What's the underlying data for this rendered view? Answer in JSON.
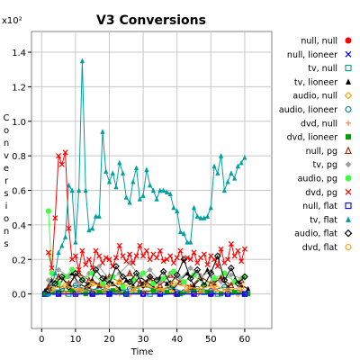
{
  "chart_data": {
    "type": "line",
    "title": "V3 Conversions",
    "xlabel": "Time",
    "ylabel": "Conversions",
    "y_scale_note": "x10²",
    "xlim": [
      -3,
      68
    ],
    "ylim": [
      -0.2,
      1.52
    ],
    "x_ticks": [
      "0",
      "10",
      "20",
      "30",
      "40",
      "50",
      "60"
    ],
    "y_ticks": [
      "0.0",
      "0.2",
      "0.4",
      "0.6",
      "0.8",
      "1.0",
      "1.2",
      "1.4"
    ],
    "grid": true,
    "legend_position": "right",
    "series": [
      {
        "name": "null, null",
        "color": "#ff0000",
        "marker": "circle-filled",
        "x": [
          1,
          5,
          10,
          15,
          20,
          25,
          30,
          35,
          40,
          45,
          50,
          55,
          60
        ],
        "y": [
          0,
          0,
          0,
          0,
          0,
          0,
          0,
          0,
          0,
          0,
          0,
          0,
          0
        ]
      },
      {
        "name": "null, lioneer",
        "color": "#0000ff",
        "marker": "x",
        "x": [
          1,
          5,
          10,
          15,
          20,
          25,
          30,
          35,
          40,
          45,
          50,
          55,
          60
        ],
        "y": [
          0,
          0,
          0,
          0,
          0,
          0,
          0,
          0,
          0,
          0,
          0,
          0,
          0
        ]
      },
      {
        "name": "tv, null",
        "color": "#00a080",
        "marker": "square-open",
        "x": [
          1,
          4,
          8,
          12,
          16,
          20,
          24,
          28,
          32,
          36,
          40,
          44,
          48,
          52,
          56,
          60
        ],
        "y": [
          0.0,
          0.01,
          0.0,
          0.02,
          0.01,
          0.0,
          0.01,
          0.02,
          0.0,
          0.01,
          0.0,
          0.02,
          0.01,
          0.0,
          0.01,
          0.0
        ]
      },
      {
        "name": "tv, lioneer",
        "color": "#000000",
        "marker": "triangle-filled",
        "x": [
          1,
          3,
          5,
          7,
          9,
          11,
          13,
          15,
          17,
          19,
          21,
          23,
          25,
          27,
          29,
          31,
          33,
          35,
          37,
          39,
          41,
          43,
          45,
          47,
          49,
          51,
          53,
          55,
          57,
          59,
          61
        ],
        "y": [
          0.02,
          0.08,
          0.05,
          0.1,
          0.12,
          0.06,
          0.04,
          0.08,
          0.05,
          0.1,
          0.06,
          0.03,
          0.08,
          0.05,
          0.1,
          0.07,
          0.04,
          0.09,
          0.06,
          0.03,
          0.08,
          0.12,
          0.05,
          0.09,
          0.14,
          0.06,
          0.1,
          0.04,
          0.08,
          0.05,
          0.03
        ]
      },
      {
        "name": "audio, null",
        "color": "#ffa000",
        "marker": "diamond-open",
        "x": [
          2,
          6,
          10,
          14,
          18,
          22,
          26,
          30,
          34,
          38,
          42,
          46,
          50,
          54,
          58
        ],
        "y": [
          0.01,
          0.02,
          0.0,
          0.03,
          0.01,
          0.02,
          0.0,
          0.01,
          0.03,
          0.02,
          0.01,
          0.0,
          0.02,
          0.01,
          0.0
        ]
      },
      {
        "name": "audio, lioneer",
        "color": "#008080",
        "marker": "circle-open",
        "x": [
          2,
          6,
          10,
          14,
          18,
          22,
          26,
          30,
          34,
          38,
          42,
          46,
          50,
          54,
          58
        ],
        "y": [
          0.0,
          0.03,
          0.05,
          0.02,
          0.04,
          0.01,
          0.03,
          0.05,
          0.02,
          0.04,
          0.01,
          0.03,
          0.02,
          0.04,
          0.01
        ]
      },
      {
        "name": "dvd, null",
        "color": "#ff8040",
        "marker": "plus",
        "x": [
          3,
          7,
          11,
          15,
          19,
          23,
          27,
          31,
          35,
          39,
          43,
          47,
          51,
          55,
          59
        ],
        "y": [
          0.02,
          0.0,
          0.03,
          0.01,
          0.02,
          0.0,
          0.02,
          0.01,
          0.03,
          0.0,
          0.02,
          0.01,
          0.03,
          0.0,
          0.02
        ]
      },
      {
        "name": "dvd, lioneer",
        "color": "#00a000",
        "marker": "square-filled",
        "x": [
          1,
          5,
          9,
          13,
          17,
          21,
          25,
          29,
          33,
          37,
          41,
          45,
          49,
          53,
          57,
          61
        ],
        "y": [
          0.0,
          0.01,
          0.02,
          0.0,
          0.01,
          0.02,
          0.0,
          0.01,
          0.02,
          0.01,
          0.0,
          0.02,
          0.01,
          0.0,
          0.01,
          0.0
        ]
      },
      {
        "name": "null, pg",
        "color": "#a02000",
        "marker": "triangle-open",
        "x": [
          2,
          5,
          8,
          11,
          14,
          17,
          20,
          23,
          26,
          29,
          32,
          35,
          38,
          41,
          44,
          47,
          50,
          53,
          56,
          59
        ],
        "y": [
          0.04,
          0.1,
          0.06,
          0.12,
          0.08,
          0.05,
          0.1,
          0.07,
          0.12,
          0.06,
          0.09,
          0.05,
          0.11,
          0.07,
          0.04,
          0.1,
          0.06,
          0.09,
          0.05,
          0.08
        ]
      },
      {
        "name": "tv, pg",
        "color": "#a0a0a0",
        "marker": "diamond-filled",
        "x": [
          2,
          5,
          8,
          11,
          14,
          17,
          20,
          23,
          26,
          29,
          32,
          35,
          38,
          41,
          44,
          47,
          50,
          53,
          56,
          59
        ],
        "y": [
          0.08,
          0.14,
          0.1,
          0.06,
          0.12,
          0.16,
          0.08,
          0.12,
          0.18,
          0.1,
          0.14,
          0.07,
          0.12,
          0.09,
          0.15,
          0.1,
          0.13,
          0.07,
          0.11,
          0.09
        ]
      },
      {
        "name": "audio, pg",
        "color": "#40ff40",
        "marker": "circle-filled",
        "x": [
          2,
          3,
          5,
          7,
          9,
          12,
          15,
          18,
          21,
          24,
          27,
          30,
          33,
          36,
          39,
          42,
          45,
          48,
          51,
          54,
          57,
          60
        ],
        "y": [
          0.48,
          0.12,
          0.06,
          0.1,
          0.14,
          0.08,
          0.12,
          0.06,
          0.1,
          0.04,
          0.08,
          0.12,
          0.06,
          0.09,
          0.13,
          0.07,
          0.11,
          0.05,
          0.09,
          0.12,
          0.07,
          0.1
        ]
      },
      {
        "name": "dvd, pg",
        "color": "#ff0000",
        "marker": "x",
        "x": [
          2,
          3,
          4,
          5,
          6,
          7,
          8,
          9,
          10,
          11,
          12,
          13,
          14,
          15,
          16,
          17,
          18,
          19,
          20,
          21,
          22,
          23,
          24,
          25,
          26,
          27,
          28,
          29,
          30,
          31,
          32,
          33,
          34,
          35,
          36,
          37,
          38,
          39,
          40,
          41,
          42,
          43,
          44,
          45,
          46,
          47,
          48,
          49,
          50,
          51,
          52,
          53,
          54,
          55,
          56,
          57,
          58,
          59,
          60
        ],
        "y": [
          0.24,
          0.15,
          0.44,
          0.8,
          0.75,
          0.82,
          0.38,
          0.2,
          0.22,
          0.14,
          0.25,
          0.17,
          0.2,
          0.15,
          0.25,
          0.22,
          0.18,
          0.21,
          0.2,
          0.16,
          0.21,
          0.28,
          0.22,
          0.19,
          0.23,
          0.18,
          0.22,
          0.28,
          0.22,
          0.25,
          0.2,
          0.23,
          0.21,
          0.25,
          0.19,
          0.2,
          0.22,
          0.18,
          0.21,
          0.25,
          0.19,
          0.21,
          0.2,
          0.24,
          0.18,
          0.21,
          0.23,
          0.17,
          0.22,
          0.2,
          0.16,
          0.26,
          0.18,
          0.2,
          0.29,
          0.22,
          0.25,
          0.19,
          0.26
        ]
      },
      {
        "name": "null, flat",
        "color": "#0000ff",
        "marker": "square-open",
        "x": [
          1,
          5,
          10,
          15,
          20,
          25,
          30,
          35,
          40,
          45,
          50,
          55,
          60
        ],
        "y": [
          0,
          0,
          0,
          0,
          0,
          0,
          0,
          0,
          0,
          0,
          0,
          0,
          0
        ]
      },
      {
        "name": "tv, flat",
        "color": "#00a0a0",
        "marker": "triangle-filled",
        "x": [
          2,
          3,
          4,
          5,
          6,
          7,
          8,
          9,
          10,
          11,
          12,
          13,
          14,
          15,
          16,
          17,
          18,
          19,
          20,
          21,
          22,
          23,
          24,
          25,
          26,
          27,
          28,
          29,
          30,
          31,
          32,
          33,
          34,
          35,
          36,
          37,
          38,
          39,
          40,
          41,
          42,
          43,
          44,
          45,
          46,
          47,
          48,
          49,
          50,
          51,
          52,
          53,
          54,
          55,
          56,
          57,
          58,
          59,
          60
        ],
        "y": [
          0.0,
          0.05,
          0.12,
          0.24,
          0.28,
          0.33,
          0.63,
          0.6,
          0.3,
          0.6,
          1.35,
          0.6,
          0.37,
          0.38,
          0.45,
          0.45,
          0.94,
          0.71,
          0.65,
          0.7,
          0.62,
          0.76,
          0.7,
          0.56,
          0.53,
          0.65,
          0.73,
          0.55,
          0.57,
          0.72,
          0.63,
          0.6,
          0.55,
          0.6,
          0.6,
          0.59,
          0.58,
          0.5,
          0.48,
          0.36,
          0.35,
          0.3,
          0.3,
          0.5,
          0.45,
          0.44,
          0.44,
          0.45,
          0.5,
          0.74,
          0.7,
          0.8,
          0.6,
          0.65,
          0.7,
          0.67,
          0.74,
          0.76,
          0.79
        ]
      },
      {
        "name": "audio, flat",
        "color": "#000000",
        "marker": "diamond-open",
        "x": [
          2,
          4,
          6,
          8,
          10,
          12,
          14,
          16,
          18,
          20,
          22,
          24,
          26,
          28,
          30,
          32,
          34,
          36,
          38,
          40,
          42,
          44,
          46,
          48,
          50,
          52,
          54,
          56,
          58,
          60
        ],
        "y": [
          0.02,
          0.06,
          0.1,
          0.04,
          0.12,
          0.08,
          0.05,
          0.14,
          0.09,
          0.06,
          0.16,
          0.1,
          0.07,
          0.12,
          0.05,
          0.1,
          0.08,
          0.13,
          0.06,
          0.11,
          0.2,
          0.09,
          0.14,
          0.05,
          0.12,
          0.22,
          0.08,
          0.15,
          0.06,
          0.1
        ]
      },
      {
        "name": "dvd, flat",
        "color": "#ffa000",
        "marker": "circle-open",
        "x": [
          3,
          7,
          11,
          15,
          19,
          23,
          27,
          31,
          35,
          39,
          43,
          47,
          51,
          55,
          59
        ],
        "y": [
          0.03,
          0.05,
          0.02,
          0.06,
          0.04,
          0.07,
          0.03,
          0.05,
          0.02,
          0.06,
          0.04,
          0.03,
          0.05,
          0.02,
          0.04
        ]
      }
    ]
  }
}
